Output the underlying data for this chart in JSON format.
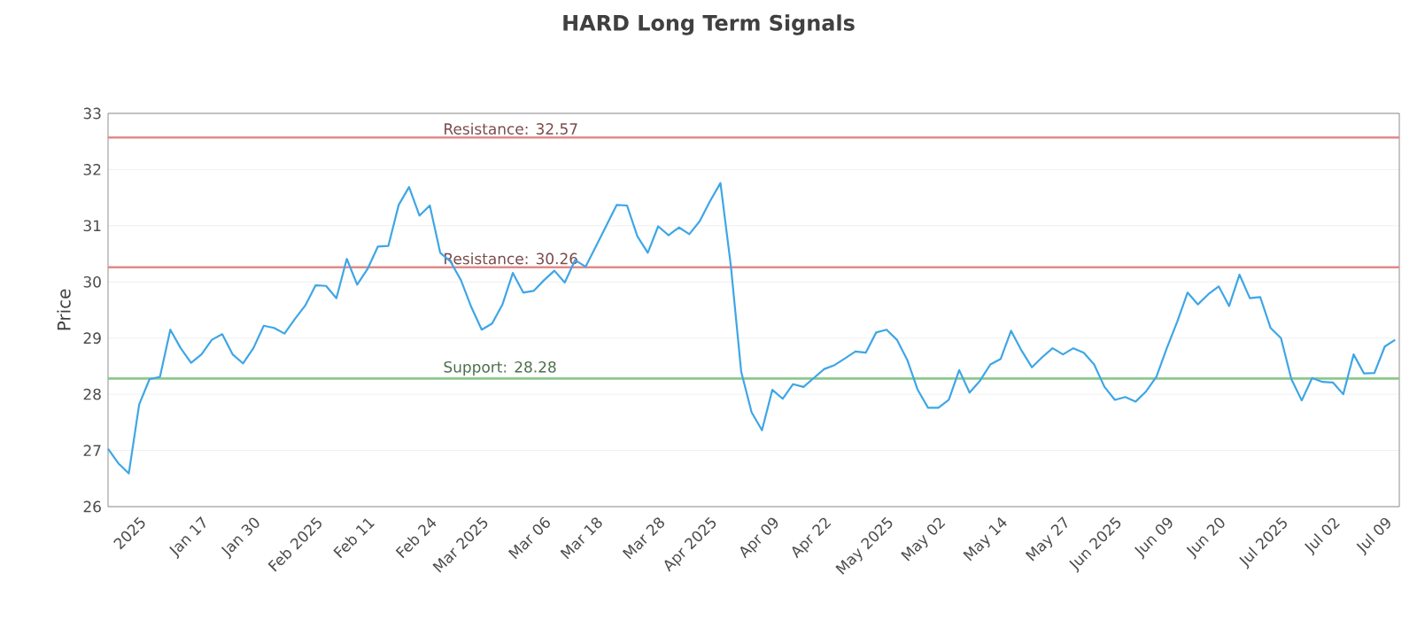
{
  "chart_data": {
    "type": "line",
    "title": "HARD Long Term Signals",
    "ylabel": "Price",
    "categories": [
      null,
      null,
      null,
      "2025",
      null,
      null,
      null,
      null,
      null,
      "Jan 17",
      null,
      null,
      null,
      null,
      "Jan 30",
      null,
      null,
      null,
      null,
      null,
      "Feb 2025",
      null,
      null,
      null,
      null,
      "Feb 11",
      null,
      null,
      null,
      null,
      null,
      "Feb 24",
      null,
      null,
      null,
      null,
      "Mar 2025",
      null,
      null,
      null,
      null,
      null,
      "Mar 06",
      null,
      null,
      null,
      null,
      "Mar 18",
      null,
      null,
      null,
      null,
      null,
      "Mar 28",
      null,
      null,
      null,
      null,
      "Apr 2025",
      null,
      null,
      null,
      null,
      null,
      "Apr 09",
      null,
      null,
      null,
      null,
      "Apr 22",
      null,
      null,
      null,
      null,
      null,
      "May 2025",
      null,
      null,
      null,
      null,
      "May 02",
      null,
      null,
      null,
      null,
      null,
      "May 14",
      null,
      null,
      null,
      null,
      null,
      "May 27",
      null,
      null,
      null,
      null,
      "Jun 2025",
      null,
      null,
      null,
      null,
      "Jun 09",
      null,
      null,
      null,
      null,
      "Jun 20",
      null,
      null,
      null,
      null,
      null,
      "Jul 2025",
      null,
      null,
      null,
      null,
      "Jul 02",
      null,
      null,
      null,
      null,
      "Jul 09",
      null
    ],
    "series": [
      {
        "color": "#3ea6e6",
        "values": [
          27.03,
          26.77,
          26.59,
          27.82,
          28.27,
          28.31,
          29.15,
          28.82,
          28.56,
          28.71,
          28.97,
          29.07,
          28.71,
          28.55,
          28.82,
          29.22,
          29.18,
          29.08,
          29.34,
          29.58,
          29.94,
          29.93,
          29.71,
          30.41,
          29.95,
          30.23,
          30.63,
          30.64,
          31.37,
          31.69,
          31.18,
          31.36,
          30.52,
          30.36,
          30.03,
          29.55,
          29.15,
          29.26,
          29.6,
          30.16,
          29.81,
          29.84,
          30.03,
          30.2,
          29.99,
          30.39,
          30.27,
          30.63,
          31.0,
          31.37,
          31.36,
          30.81,
          30.52,
          30.99,
          30.83,
          30.97,
          30.85,
          31.08,
          31.44,
          31.76,
          30.29,
          28.4,
          27.68,
          27.36,
          28.08,
          27.92,
          28.18,
          28.13,
          28.29,
          28.45,
          28.52,
          28.64,
          28.76,
          28.74,
          29.1,
          29.15,
          28.97,
          28.61,
          28.08,
          27.76,
          27.76,
          27.9,
          28.43,
          28.03,
          28.24,
          28.53,
          28.63,
          29.13,
          28.78,
          28.48,
          28.66,
          28.82,
          28.71,
          28.82,
          28.74,
          28.53,
          28.13,
          27.9,
          27.95,
          27.87,
          28.05,
          28.31,
          28.82,
          29.29,
          29.81,
          29.6,
          29.78,
          29.92,
          29.57,
          30.13,
          29.71,
          29.73,
          29.18,
          29.0,
          28.27,
          27.89,
          28.29,
          28.22,
          28.21,
          28.0,
          28.71,
          28.37,
          28.38,
          28.85,
          28.97
        ]
      }
    ],
    "ylim": [
      26,
      33
    ],
    "yticks": [
      26,
      27,
      28,
      29,
      30,
      31,
      32,
      33
    ],
    "grid": "y",
    "marker": "none",
    "line_style": "solid",
    "ref_lines": [
      {
        "axis": "y",
        "value": 32.57,
        "label": "Resistance: 32.57",
        "color": "#e08a8a"
      },
      {
        "axis": "y",
        "value": 30.26,
        "label": "Resistance: 30.26",
        "color": "#e08a8a"
      },
      {
        "axis": "y",
        "value": 28.28,
        "label": "Support: 28.28",
        "color": "#8cc88c"
      }
    ]
  }
}
